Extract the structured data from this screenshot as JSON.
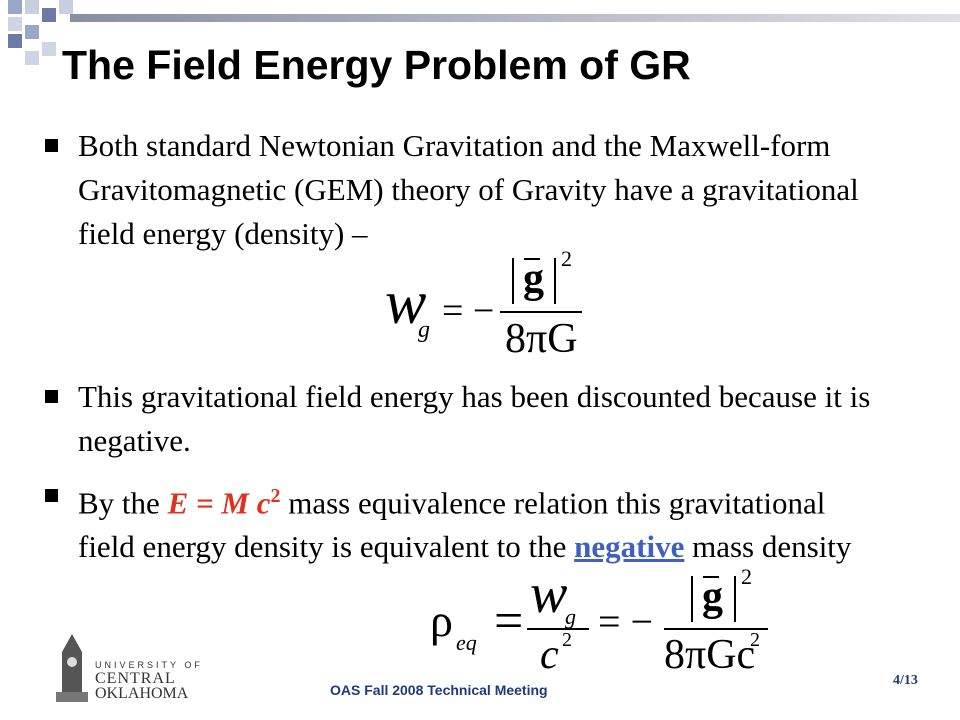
{
  "header": {
    "title": "The Field Energy Problem of GR"
  },
  "bullets": [
    {
      "text": "Both standard Newtonian Gravitation and the Maxwell-form Gravitomagnetic (GEM) theory of Gravity have a gravitational field energy (density) –"
    },
    {
      "text": "This gravitational field energy has been discounted because it is negative."
    },
    {
      "parts": [
        "By the ",
        "E = M c",
        "2",
        " mass equivalence relation this gravitational field energy density is equivalent to the ",
        "negative",
        " mass density"
      ]
    }
  ],
  "equation1": {
    "lhs": "w",
    "lhs_sub": "g",
    "sign": "= −",
    "numerator": "g",
    "exponent": "2",
    "denominator": "8πG"
  },
  "equation2": {
    "lhs": "ρ",
    "lhs_sub": "eq",
    "eq1": "=",
    "frac_num": "w",
    "frac_num_sub": "g",
    "frac_den": "c",
    "frac_den_exp": "2",
    "eq2": "= −",
    "numerator": "g",
    "exponent": "2",
    "denominator": "8πGc",
    "denominator_exp": "2"
  },
  "footer": {
    "logo": [
      "UNIVERSITY OF",
      "CENTRAL",
      "OKLAHOMA"
    ],
    "meeting": "OAS Fall 2008 Technical Meeting",
    "page": "4/13"
  }
}
